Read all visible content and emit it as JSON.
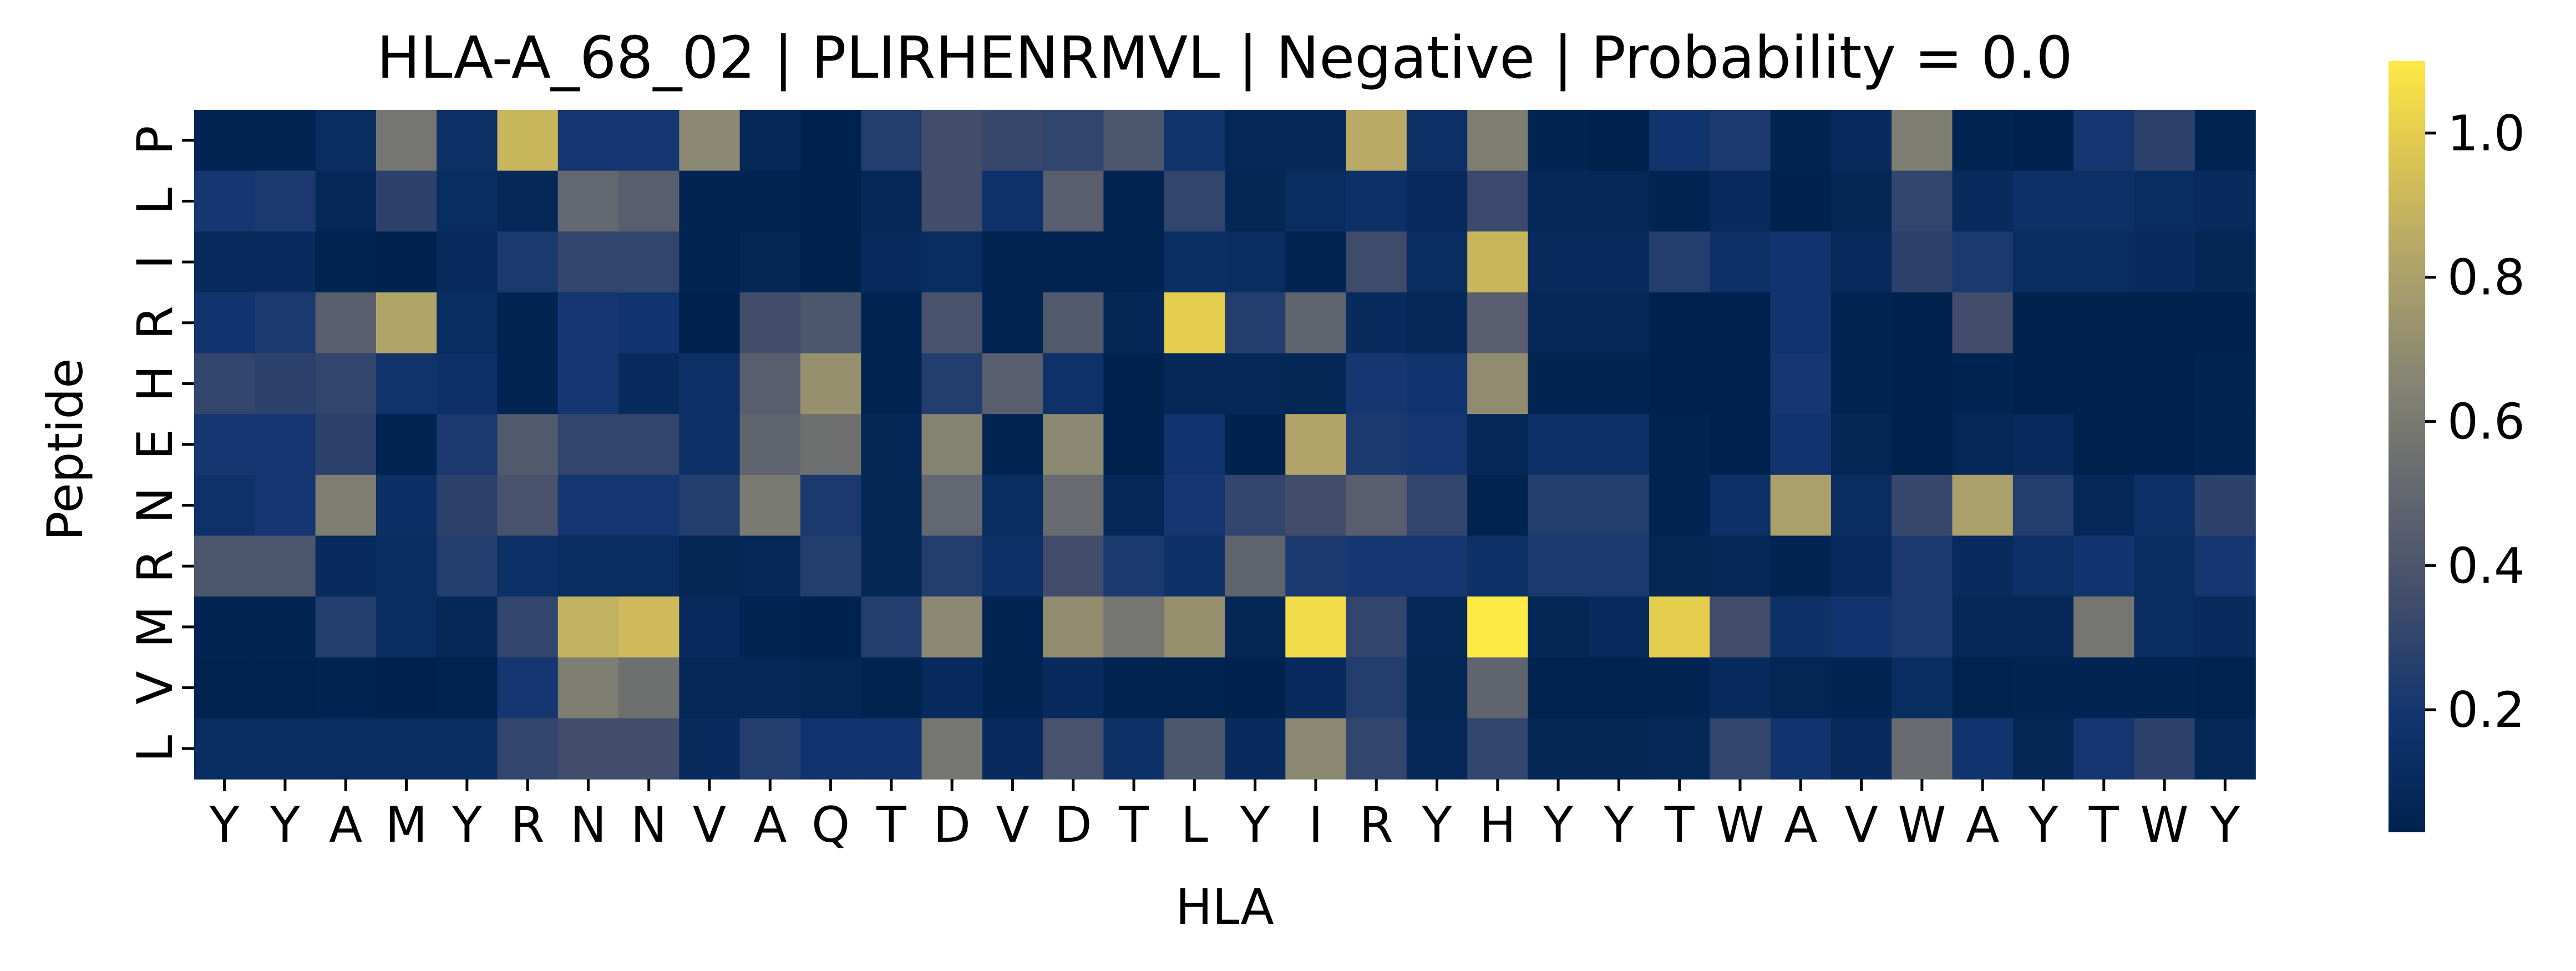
{
  "chart_data": {
    "type": "heatmap",
    "title": "HLA-A_68_02 | PLIRHENRMVL | Negative | Probability = 0.0",
    "xlabel": "HLA",
    "ylabel": "Peptide",
    "x_labels": [
      "Y",
      "Y",
      "A",
      "M",
      "Y",
      "R",
      "N",
      "N",
      "V",
      "A",
      "Q",
      "T",
      "D",
      "V",
      "D",
      "T",
      "L",
      "Y",
      "I",
      "R",
      "Y",
      "H",
      "Y",
      "Y",
      "T",
      "W",
      "A",
      "V",
      "W",
      "A",
      "Y",
      "T",
      "W",
      "Y"
    ],
    "y_labels": [
      "P",
      "L",
      "I",
      "R",
      "H",
      "E",
      "N",
      "R",
      "M",
      "V",
      "L"
    ],
    "colorbar": {
      "ticks": [
        "0.2",
        "0.4",
        "0.6",
        "0.8",
        "1.0"
      ],
      "tick_values": [
        0.2,
        0.4,
        0.6,
        0.8,
        1.0
      ],
      "range": [
        0.03,
        1.1
      ],
      "colormap": "cividis"
    },
    "values": [
      [
        0.05,
        0.05,
        0.12,
        0.58,
        0.15,
        0.9,
        0.2,
        0.2,
        0.68,
        0.08,
        0.03,
        0.25,
        0.35,
        0.32,
        0.3,
        0.4,
        0.17,
        0.08,
        0.08,
        0.85,
        0.15,
        0.62,
        0.05,
        0.02,
        0.18,
        0.22,
        0.05,
        0.1,
        0.62,
        0.05,
        0.02,
        0.2,
        0.28,
        0.05
      ],
      [
        0.2,
        0.22,
        0.08,
        0.28,
        0.12,
        0.08,
        0.5,
        0.45,
        0.05,
        0.05,
        0.03,
        0.08,
        0.35,
        0.16,
        0.45,
        0.05,
        0.3,
        0.07,
        0.12,
        0.15,
        0.1,
        0.33,
        0.08,
        0.08,
        0.05,
        0.1,
        0.03,
        0.07,
        0.3,
        0.1,
        0.15,
        0.15,
        0.12,
        0.1
      ],
      [
        0.1,
        0.1,
        0.05,
        0.02,
        0.1,
        0.22,
        0.3,
        0.3,
        0.05,
        0.07,
        0.03,
        0.1,
        0.12,
        0.05,
        0.05,
        0.05,
        0.13,
        0.12,
        0.05,
        0.34,
        0.12,
        0.9,
        0.1,
        0.1,
        0.25,
        0.15,
        0.18,
        0.1,
        0.28,
        0.22,
        0.12,
        0.12,
        0.1,
        0.07
      ],
      [
        0.18,
        0.22,
        0.45,
        0.82,
        0.12,
        0.05,
        0.2,
        0.18,
        0.02,
        0.35,
        0.4,
        0.05,
        0.38,
        0.05,
        0.42,
        0.07,
        1.0,
        0.25,
        0.48,
        0.1,
        0.08,
        0.45,
        0.08,
        0.08,
        0.03,
        0.03,
        0.18,
        0.05,
        0.02,
        0.35,
        0.02,
        0.02,
        0.03,
        0.03
      ],
      [
        0.3,
        0.28,
        0.3,
        0.17,
        0.15,
        0.05,
        0.2,
        0.1,
        0.15,
        0.45,
        0.72,
        0.05,
        0.25,
        0.45,
        0.16,
        0.02,
        0.08,
        0.08,
        0.07,
        0.2,
        0.18,
        0.7,
        0.05,
        0.05,
        0.01,
        0.03,
        0.2,
        0.05,
        0.02,
        0.05,
        0.03,
        0.01,
        0.02,
        0.05
      ],
      [
        0.2,
        0.2,
        0.28,
        0.05,
        0.22,
        0.42,
        0.3,
        0.3,
        0.15,
        0.48,
        0.55,
        0.07,
        0.65,
        0.05,
        0.68,
        0.02,
        0.18,
        0.03,
        0.82,
        0.22,
        0.2,
        0.08,
        0.15,
        0.15,
        0.05,
        0.03,
        0.18,
        0.07,
        0.03,
        0.08,
        0.1,
        0.03,
        0.01,
        0.05
      ],
      [
        0.16,
        0.2,
        0.62,
        0.14,
        0.28,
        0.38,
        0.2,
        0.2,
        0.25,
        0.6,
        0.22,
        0.07,
        0.5,
        0.12,
        0.52,
        0.08,
        0.2,
        0.3,
        0.35,
        0.45,
        0.3,
        0.04,
        0.25,
        0.25,
        0.05,
        0.15,
        0.8,
        0.12,
        0.32,
        0.8,
        0.25,
        0.08,
        0.15,
        0.28
      ],
      [
        0.4,
        0.4,
        0.1,
        0.12,
        0.25,
        0.15,
        0.12,
        0.12,
        0.07,
        0.08,
        0.25,
        0.07,
        0.25,
        0.15,
        0.35,
        0.22,
        0.15,
        0.48,
        0.22,
        0.2,
        0.2,
        0.15,
        0.22,
        0.22,
        0.07,
        0.08,
        0.05,
        0.1,
        0.22,
        0.1,
        0.15,
        0.18,
        0.12,
        0.2
      ],
      [
        0.05,
        0.05,
        0.25,
        0.12,
        0.08,
        0.3,
        0.88,
        0.92,
        0.1,
        0.05,
        0.03,
        0.25,
        0.68,
        0.05,
        0.7,
        0.58,
        0.72,
        0.07,
        1.05,
        0.3,
        0.08,
        1.1,
        0.07,
        0.1,
        1.0,
        0.35,
        0.15,
        0.18,
        0.22,
        0.08,
        0.08,
        0.58,
        0.12,
        0.1
      ],
      [
        0.04,
        0.04,
        0.05,
        0.03,
        0.04,
        0.2,
        0.62,
        0.55,
        0.08,
        0.08,
        0.06,
        0.04,
        0.1,
        0.05,
        0.1,
        0.04,
        0.04,
        0.03,
        0.1,
        0.25,
        0.07,
        0.48,
        0.04,
        0.04,
        0.05,
        0.1,
        0.06,
        0.05,
        0.12,
        0.04,
        0.05,
        0.05,
        0.05,
        0.04
      ],
      [
        0.12,
        0.12,
        0.12,
        0.12,
        0.12,
        0.3,
        0.35,
        0.35,
        0.1,
        0.25,
        0.18,
        0.18,
        0.58,
        0.1,
        0.38,
        0.15,
        0.4,
        0.1,
        0.68,
        0.3,
        0.08,
        0.3,
        0.07,
        0.07,
        0.08,
        0.3,
        0.18,
        0.1,
        0.52,
        0.18,
        0.07,
        0.2,
        0.28,
        0.08
      ]
    ]
  }
}
